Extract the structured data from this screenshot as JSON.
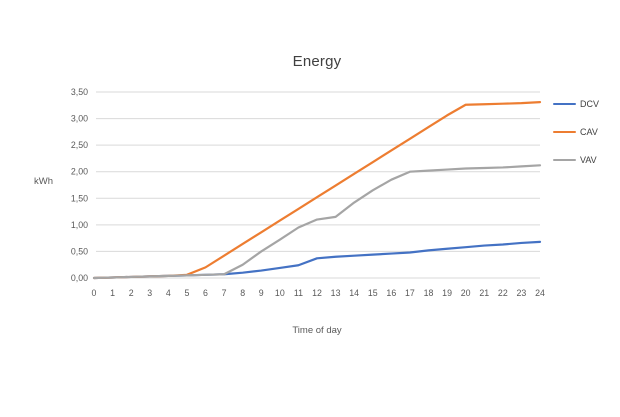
{
  "chart_data": {
    "type": "line",
    "title": "Energy",
    "xlabel": "Time of day",
    "ylabel": "kWh",
    "xlim": [
      0,
      24
    ],
    "ylim": [
      0,
      3.5
    ],
    "grid": "horizontal",
    "legend_position": "right",
    "x": [
      0,
      1,
      2,
      3,
      4,
      5,
      6,
      7,
      8,
      9,
      10,
      11,
      12,
      13,
      14,
      15,
      16,
      17,
      18,
      19,
      20,
      21,
      22,
      23,
      24
    ],
    "yticks": [
      0,
      0.5,
      1.0,
      1.5,
      2.0,
      2.5,
      3.0,
      3.5
    ],
    "ytick_labels": [
      "0,00",
      "0,50",
      "1,00",
      "1,50",
      "2,00",
      "2,50",
      "3,00",
      "3,50"
    ],
    "series": [
      {
        "name": "DCV",
        "color": "#4472C4",
        "values": [
          0.0,
          0.01,
          0.02,
          0.03,
          0.04,
          0.05,
          0.06,
          0.07,
          0.1,
          0.14,
          0.19,
          0.24,
          0.37,
          0.4,
          0.42,
          0.44,
          0.46,
          0.48,
          0.52,
          0.55,
          0.58,
          0.61,
          0.63,
          0.66,
          0.68
        ]
      },
      {
        "name": "CAV",
        "color": "#ED7D31",
        "values": [
          0.0,
          0.01,
          0.02,
          0.03,
          0.04,
          0.06,
          0.2,
          0.42,
          0.64,
          0.86,
          1.08,
          1.3,
          1.52,
          1.74,
          1.96,
          2.18,
          2.4,
          2.62,
          2.84,
          3.06,
          3.26,
          3.27,
          3.28,
          3.29,
          3.31
        ]
      },
      {
        "name": "VAV",
        "color": "#A5A5A5",
        "values": [
          0.0,
          0.01,
          0.02,
          0.03,
          0.04,
          0.05,
          0.06,
          0.07,
          0.25,
          0.5,
          0.72,
          0.95,
          1.1,
          1.15,
          1.42,
          1.65,
          1.85,
          2.0,
          2.02,
          2.04,
          2.06,
          2.07,
          2.08,
          2.1,
          2.12
        ]
      }
    ]
  },
  "colors": {
    "background": "#FFFFFF",
    "grid": "#D9D9D9",
    "tick_text": "#595959",
    "title_text": "#404040"
  }
}
